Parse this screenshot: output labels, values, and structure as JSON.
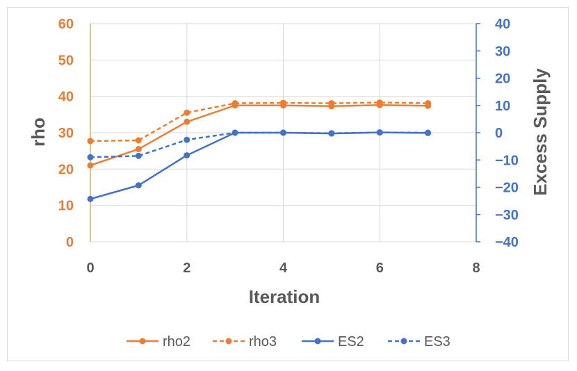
{
  "chart_data": {
    "type": "line",
    "title": "",
    "xlabel": "Iteration",
    "ylabel": "rho",
    "y2label": "Excess Supply",
    "xlim": [
      0,
      8
    ],
    "ylim": [
      0,
      60
    ],
    "y2lim": [
      -40,
      40
    ],
    "x_ticks": [
      "0",
      "2",
      "4",
      "6",
      "8"
    ],
    "y_ticks": [
      "0",
      "10",
      "20",
      "30",
      "40",
      "50",
      "60"
    ],
    "y2_ticks": [
      "-40",
      "-30",
      "-20",
      "-10",
      "0",
      "10",
      "20",
      "30",
      "40"
    ],
    "grid": true,
    "legend_position": "bottom",
    "colors": {
      "left_axis": "#ED7D31",
      "right_axis": "#4472C4",
      "text": "#595959",
      "grid": "#d9d9d9"
    },
    "series": [
      {
        "name": "rho2",
        "axis": "left",
        "style": "solid",
        "color": "#ED7D31",
        "x": [
          0,
          1,
          2,
          3,
          4,
          5,
          6,
          7
        ],
        "values": [
          21,
          25.5,
          33,
          37.5,
          37.5,
          37.3,
          37.6,
          37.4
        ]
      },
      {
        "name": "rho3",
        "axis": "left",
        "style": "dashed",
        "color": "#ED7D31",
        "x": [
          0,
          1,
          2,
          3,
          4,
          5,
          6,
          7
        ],
        "values": [
          27.7,
          27.9,
          35.5,
          38.1,
          38.2,
          38.1,
          38.3,
          38.1
        ]
      },
      {
        "name": "ES2",
        "axis": "right",
        "style": "solid",
        "color": "#4472C4",
        "x": [
          0,
          1,
          2,
          3,
          4,
          5,
          6,
          7
        ],
        "values": [
          -24.3,
          -19.3,
          -8.3,
          0,
          0,
          -0.3,
          0.1,
          -0.1
        ]
      },
      {
        "name": "ES3",
        "axis": "right",
        "style": "dashed",
        "color": "#4472C4",
        "x": [
          0,
          1,
          2,
          3,
          4,
          5,
          6,
          7
        ],
        "values": [
          -9,
          -8.5,
          -2.6,
          0,
          0,
          -0.2,
          0.1,
          0
        ]
      }
    ]
  }
}
